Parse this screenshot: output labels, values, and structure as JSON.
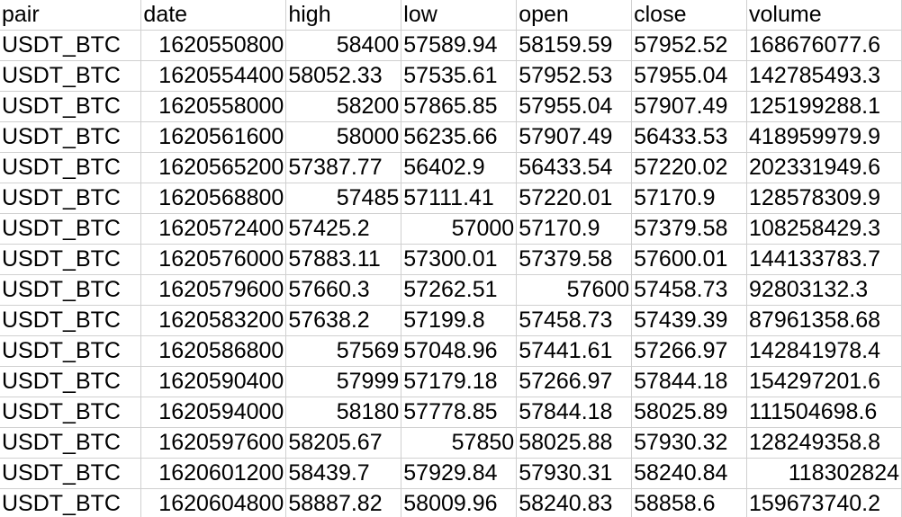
{
  "sheet": {
    "header": [
      "pair",
      "date",
      "high",
      "low",
      "open",
      "close",
      "volume"
    ],
    "rows": [
      [
        {
          "v": "USDT_BTC",
          "t": "s"
        },
        {
          "v": "1620550800",
          "t": "n"
        },
        {
          "v": "58400",
          "t": "n"
        },
        {
          "v": "57589.94",
          "t": "s"
        },
        {
          "v": "58159.59",
          "t": "s"
        },
        {
          "v": "57952.52",
          "t": "s"
        },
        {
          "v": "168676077.6",
          "t": "s"
        }
      ],
      [
        {
          "v": "USDT_BTC",
          "t": "s"
        },
        {
          "v": "1620554400",
          "t": "n"
        },
        {
          "v": "58052.33",
          "t": "s"
        },
        {
          "v": "57535.61",
          "t": "s"
        },
        {
          "v": "57952.53",
          "t": "s"
        },
        {
          "v": "57955.04",
          "t": "s"
        },
        {
          "v": "142785493.3",
          "t": "s"
        }
      ],
      [
        {
          "v": "USDT_BTC",
          "t": "s"
        },
        {
          "v": "1620558000",
          "t": "n"
        },
        {
          "v": "58200",
          "t": "n"
        },
        {
          "v": "57865.85",
          "t": "s"
        },
        {
          "v": "57955.04",
          "t": "s"
        },
        {
          "v": "57907.49",
          "t": "s"
        },
        {
          "v": "125199288.1",
          "t": "s"
        }
      ],
      [
        {
          "v": "USDT_BTC",
          "t": "s"
        },
        {
          "v": "1620561600",
          "t": "n"
        },
        {
          "v": "58000",
          "t": "n"
        },
        {
          "v": "56235.66",
          "t": "s"
        },
        {
          "v": "57907.49",
          "t": "s"
        },
        {
          "v": "56433.53",
          "t": "s"
        },
        {
          "v": "418959979.9",
          "t": "s"
        }
      ],
      [
        {
          "v": "USDT_BTC",
          "t": "s"
        },
        {
          "v": "1620565200",
          "t": "n"
        },
        {
          "v": "57387.77",
          "t": "s"
        },
        {
          "v": "56402.9",
          "t": "s"
        },
        {
          "v": "56433.54",
          "t": "s"
        },
        {
          "v": "57220.02",
          "t": "s"
        },
        {
          "v": "202331949.6",
          "t": "s"
        }
      ],
      [
        {
          "v": "USDT_BTC",
          "t": "s"
        },
        {
          "v": "1620568800",
          "t": "n"
        },
        {
          "v": "57485",
          "t": "n"
        },
        {
          "v": "57111.41",
          "t": "s"
        },
        {
          "v": "57220.01",
          "t": "s"
        },
        {
          "v": "57170.9",
          "t": "s"
        },
        {
          "v": "128578309.9",
          "t": "s"
        }
      ],
      [
        {
          "v": "USDT_BTC",
          "t": "s"
        },
        {
          "v": "1620572400",
          "t": "n"
        },
        {
          "v": "57425.2",
          "t": "s"
        },
        {
          "v": "57000",
          "t": "n"
        },
        {
          "v": "57170.9",
          "t": "s"
        },
        {
          "v": "57379.58",
          "t": "s"
        },
        {
          "v": "108258429.3",
          "t": "s"
        }
      ],
      [
        {
          "v": "USDT_BTC",
          "t": "s"
        },
        {
          "v": "1620576000",
          "t": "n"
        },
        {
          "v": "57883.11",
          "t": "s"
        },
        {
          "v": "57300.01",
          "t": "s"
        },
        {
          "v": "57379.58",
          "t": "s"
        },
        {
          "v": "57600.01",
          "t": "s"
        },
        {
          "v": "144133783.7",
          "t": "s"
        }
      ],
      [
        {
          "v": "USDT_BTC",
          "t": "s"
        },
        {
          "v": "1620579600",
          "t": "n"
        },
        {
          "v": "57660.3",
          "t": "s"
        },
        {
          "v": "57262.51",
          "t": "s"
        },
        {
          "v": "57600",
          "t": "n"
        },
        {
          "v": "57458.73",
          "t": "s"
        },
        {
          "v": "92803132.3",
          "t": "s"
        }
      ],
      [
        {
          "v": "USDT_BTC",
          "t": "s"
        },
        {
          "v": "1620583200",
          "t": "n"
        },
        {
          "v": "57638.2",
          "t": "s"
        },
        {
          "v": "57199.8",
          "t": "s"
        },
        {
          "v": "57458.73",
          "t": "s"
        },
        {
          "v": "57439.39",
          "t": "s"
        },
        {
          "v": "87961358.68",
          "t": "s"
        }
      ],
      [
        {
          "v": "USDT_BTC",
          "t": "s"
        },
        {
          "v": "1620586800",
          "t": "n"
        },
        {
          "v": "57569",
          "t": "n"
        },
        {
          "v": "57048.96",
          "t": "s"
        },
        {
          "v": "57441.61",
          "t": "s"
        },
        {
          "v": "57266.97",
          "t": "s"
        },
        {
          "v": "142841978.4",
          "t": "s"
        }
      ],
      [
        {
          "v": "USDT_BTC",
          "t": "s"
        },
        {
          "v": "1620590400",
          "t": "n"
        },
        {
          "v": "57999",
          "t": "n"
        },
        {
          "v": "57179.18",
          "t": "s"
        },
        {
          "v": "57266.97",
          "t": "s"
        },
        {
          "v": "57844.18",
          "t": "s"
        },
        {
          "v": "154297201.6",
          "t": "s"
        }
      ],
      [
        {
          "v": "USDT_BTC",
          "t": "s"
        },
        {
          "v": "1620594000",
          "t": "n"
        },
        {
          "v": "58180",
          "t": "n"
        },
        {
          "v": "57778.85",
          "t": "s"
        },
        {
          "v": "57844.18",
          "t": "s"
        },
        {
          "v": "58025.89",
          "t": "s"
        },
        {
          "v": "111504698.6",
          "t": "s"
        }
      ],
      [
        {
          "v": "USDT_BTC",
          "t": "s"
        },
        {
          "v": "1620597600",
          "t": "n"
        },
        {
          "v": "58205.67",
          "t": "s"
        },
        {
          "v": "57850",
          "t": "n"
        },
        {
          "v": "58025.88",
          "t": "s"
        },
        {
          "v": "57930.32",
          "t": "s"
        },
        {
          "v": "128249358.8",
          "t": "s"
        }
      ],
      [
        {
          "v": "USDT_BTC",
          "t": "s"
        },
        {
          "v": "1620601200",
          "t": "n"
        },
        {
          "v": "58439.7",
          "t": "s"
        },
        {
          "v": "57929.84",
          "t": "s"
        },
        {
          "v": "57930.31",
          "t": "s"
        },
        {
          "v": "58240.84",
          "t": "s"
        },
        {
          "v": "118302824",
          "t": "n"
        }
      ],
      [
        {
          "v": "USDT_BTC",
          "t": "s"
        },
        {
          "v": "1620604800",
          "t": "n"
        },
        {
          "v": "58887.82",
          "t": "s"
        },
        {
          "v": "58009.96",
          "t": "s"
        },
        {
          "v": "58240.83",
          "t": "s"
        },
        {
          "v": "58858.6",
          "t": "s"
        },
        {
          "v": "159673740.2",
          "t": "s"
        }
      ]
    ]
  }
}
